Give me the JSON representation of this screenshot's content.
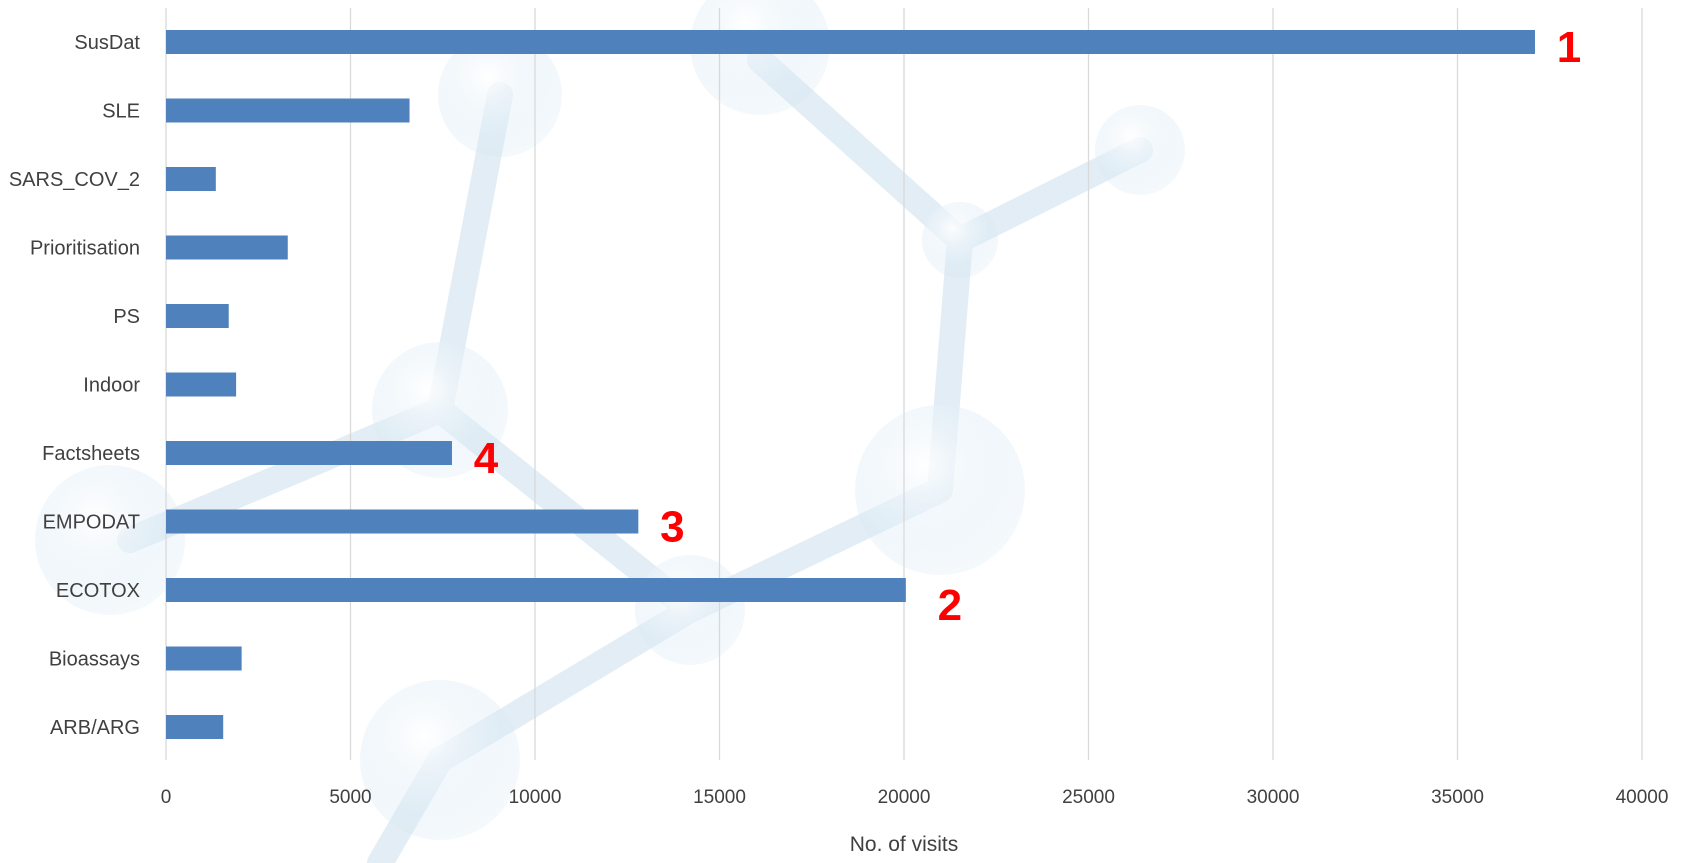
{
  "chart_data": {
    "type": "bar",
    "orientation": "horizontal",
    "categories": [
      "ARB/ARG",
      "Bioassays",
      "ECOTOX",
      "EMPODAT",
      "Factsheets",
      "Indoor",
      "PS",
      "Prioritisation",
      "SARS_COV_2",
      "SLE",
      "SusDat"
    ],
    "values": [
      1550,
      2050,
      20050,
      12800,
      7750,
      1900,
      1700,
      3300,
      1350,
      6600,
      37100
    ],
    "xlabel": "No. of visits",
    "ylabel": "",
    "xlim": [
      0,
      40000
    ],
    "xticks": [
      0,
      5000,
      10000,
      15000,
      20000,
      25000,
      30000,
      35000,
      40000
    ],
    "grid": "vertical",
    "bar_color": "#4F81BD",
    "annotations": [
      {
        "category": "SusDat",
        "text": "1"
      },
      {
        "category": "ECOTOX",
        "text": "2"
      },
      {
        "category": "EMPODAT",
        "text": "3"
      },
      {
        "category": "Factsheets",
        "text": "4"
      }
    ],
    "annotation_color": "#FF0000",
    "grid_color": "#D9D9D9",
    "text_color": "#404040"
  }
}
